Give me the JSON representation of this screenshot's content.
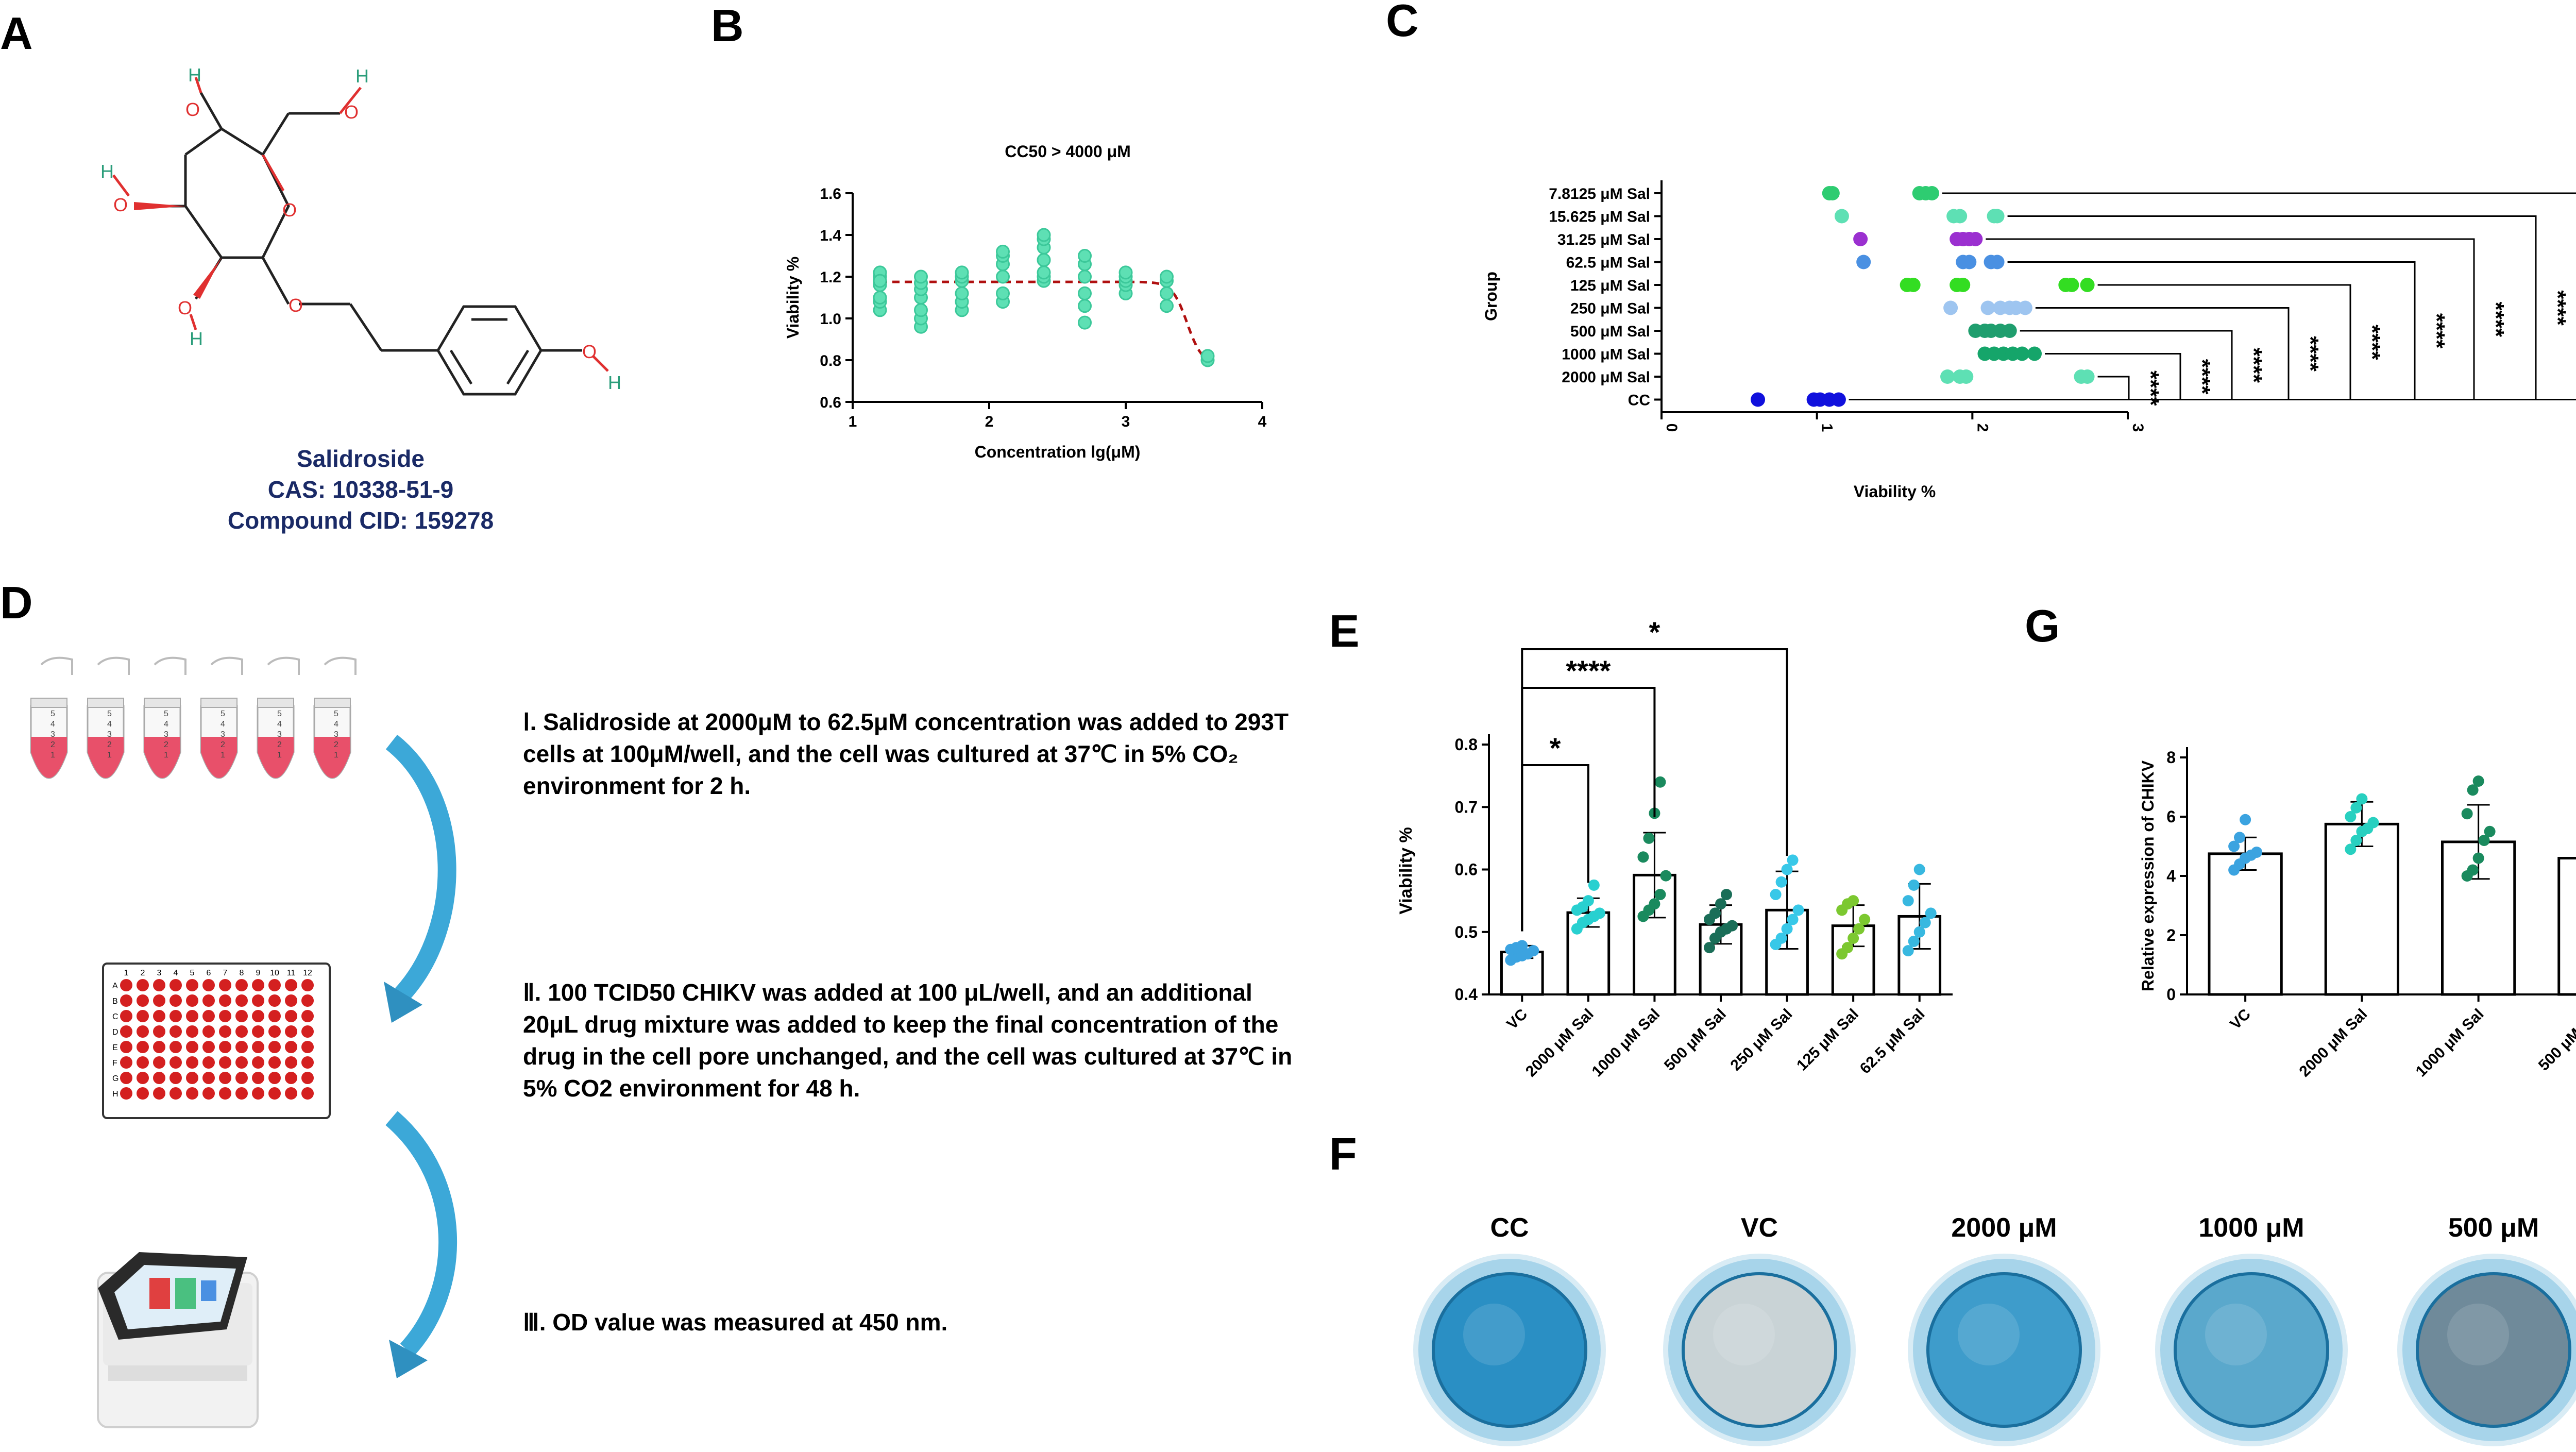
{
  "panel_labels": {
    "a": "A",
    "b": "B",
    "c": "C",
    "d": "D",
    "e": "E",
    "f": "F",
    "g": "G"
  },
  "compound": {
    "name": "Salidroside",
    "cas": "CAS: 10338-51-9",
    "cid": "Compound CID: 159278",
    "atom_labels": [
      "O",
      "O",
      "O",
      "O",
      "O",
      "O",
      "O",
      "H",
      "H",
      "H",
      "H",
      "H"
    ]
  },
  "protocol": {
    "step1": "Ⅰ. Salidroside at 2000μM to 62.5μM concentration was added to 293T cells at 100μM/well, and the cell was cultured at 37℃ in 5% CO₂ environment for 2 h.",
    "step2": "Ⅱ. 100 TCID50 CHIKV was added at 100 μL/well, and an additional 20μL drug mixture was added to keep the final concentration of the drug in the cell pore unchanged, and the cell was cultured at 37℃ in 5% CO2 environment for 48 h.",
    "step3": "Ⅲ. OD value was measured at 450 nm.",
    "tube_marks": [
      "5",
      "4",
      "3",
      "2",
      "1"
    ],
    "plate_cols": [
      "1",
      "2",
      "3",
      "4",
      "5",
      "6",
      "7",
      "8",
      "9",
      "10",
      "11",
      "12"
    ],
    "plate_rows": [
      "A",
      "B",
      "C",
      "D",
      "E",
      "F",
      "G",
      "H"
    ]
  },
  "stain_images": {
    "labels": [
      "CC",
      "VC",
      "2000 μM",
      "1000 μM",
      "500 μM"
    ]
  },
  "colors": {
    "teal": "#5ee0b4",
    "red_dash": "#b01010",
    "bar_outline": "#000000",
    "arrow": "#3ca8d8",
    "stain": "#2a8fc4",
    "text_blue": "#1a2a66"
  },
  "chart_data": [
    {
      "id": "B",
      "type": "scatter",
      "title": "CC50 > 4000 μM",
      "xlabel": "Concentration lg(μM)",
      "ylabel": "Viability %",
      "xlim": [
        1,
        4
      ],
      "ylim": [
        0.6,
        1.6
      ],
      "xticks": [
        "1",
        "2",
        "3",
        "4"
      ],
      "yticks": [
        "0.6",
        "0.8",
        "1.0",
        "1.2",
        "1.4",
        "1.6"
      ],
      "x": [
        1.2,
        1.5,
        1.8,
        2.1,
        2.4,
        2.7,
        3.0,
        3.3,
        3.6
      ],
      "replicates": [
        [
          1.04,
          1.08,
          1.16,
          1.2,
          1.22,
          1.18,
          1.1
        ],
        [
          0.96,
          1.0,
          1.04,
          1.1,
          1.14,
          1.17,
          1.2
        ],
        [
          1.04,
          1.08,
          1.12,
          1.18,
          1.2,
          1.22
        ],
        [
          1.08,
          1.12,
          1.2,
          1.26,
          1.3,
          1.32
        ],
        [
          1.18,
          1.2,
          1.22,
          1.28,
          1.34,
          1.38,
          1.4
        ],
        [
          0.98,
          1.06,
          1.12,
          1.2,
          1.26,
          1.3
        ],
        [
          1.12,
          1.16,
          1.18,
          1.2,
          1.22
        ],
        [
          1.06,
          1.12,
          1.18,
          1.2
        ],
        [
          0.8,
          0.82
        ]
      ],
      "fit": {
        "top": 1.175,
        "bottom": 0.78,
        "logIC50": 3.45,
        "hill": -8
      }
    },
    {
      "id": "C",
      "type": "scatter",
      "xlabel": "Viability %",
      "ylabel": "Group",
      "xlim": [
        0,
        3
      ],
      "xticks": [
        "0",
        "1",
        "2",
        "3"
      ],
      "groups": [
        "7.8125 μM Sal",
        "15.625 μM Sal",
        "31.25 μM Sal",
        "62.5 μM Sal",
        "125 μM Sal",
        "250 μM Sal",
        "500 μM Sal",
        "1000 μM Sal",
        "2000 μM Sal",
        "CC"
      ],
      "group_colors": [
        "#2ecc71",
        "#5ee0b4",
        "#9b30d0",
        "#4a90e2",
        "#33dd22",
        "#9ec5f0",
        "#1f9e6e",
        "#15a56a",
        "#5ee0b4",
        "#1010dd"
      ],
      "values": [
        [
          1.08,
          1.1,
          1.66,
          1.7,
          1.74
        ],
        [
          1.16,
          1.88,
          1.92,
          2.14,
          2.16
        ],
        [
          1.28,
          1.9,
          1.94,
          1.98,
          2.02
        ],
        [
          1.3,
          1.94,
          1.98,
          2.12,
          2.16
        ],
        [
          1.58,
          1.62,
          1.9,
          1.94,
          2.6,
          2.64,
          2.74
        ],
        [
          1.86,
          2.1,
          2.18,
          2.24,
          2.28,
          2.34
        ],
        [
          2.02,
          2.08,
          2.12,
          2.18,
          2.24
        ],
        [
          2.08,
          2.14,
          2.2,
          2.26,
          2.32,
          2.4
        ],
        [
          1.84,
          1.92,
          1.96,
          2.7,
          2.74
        ],
        [
          0.62,
          0.98,
          1.02,
          1.08,
          1.14
        ]
      ],
      "significance": [
        "*",
        "****",
        "****",
        "****",
        "****",
        "****",
        "****",
        "****",
        "****"
      ]
    },
    {
      "id": "E",
      "type": "bar",
      "ylabel": "Viability %",
      "ylim": [
        0.4,
        0.8
      ],
      "yticks": [
        "0.4",
        "0.5",
        "0.6",
        "0.7",
        "0.8"
      ],
      "categories": [
        "VC",
        "2000 μM Sal",
        "1000 μM Sal",
        "500 μM Sal",
        "250 μM Sal",
        "125 μM Sal",
        "62.5 μM Sal"
      ],
      "values": [
        0.468,
        0.531,
        0.591,
        0.512,
        0.535,
        0.51,
        0.525
      ],
      "errors": [
        0.01,
        0.023,
        0.068,
        0.031,
        0.062,
        0.033,
        0.052
      ],
      "point_colors": [
        "#3ba3e0",
        "#28d0d0",
        "#1a8a5e",
        "#1a6e58",
        "#38c8e8",
        "#7cc830",
        "#38b8e0"
      ],
      "points": [
        [
          0.455,
          0.46,
          0.462,
          0.465,
          0.47,
          0.472,
          0.475,
          0.478
        ],
        [
          0.505,
          0.515,
          0.52,
          0.525,
          0.53,
          0.535,
          0.54,
          0.55,
          0.575
        ],
        [
          0.525,
          0.535,
          0.545,
          0.56,
          0.59,
          0.62,
          0.65,
          0.69,
          0.74
        ],
        [
          0.475,
          0.49,
          0.5,
          0.505,
          0.51,
          0.52,
          0.53,
          0.545,
          0.56
        ],
        [
          0.48,
          0.49,
          0.505,
          0.52,
          0.535,
          0.56,
          0.58,
          0.6,
          0.615
        ],
        [
          0.465,
          0.475,
          0.49,
          0.505,
          0.52,
          0.535,
          0.545,
          0.55
        ],
        [
          0.47,
          0.485,
          0.5,
          0.515,
          0.53,
          0.55,
          0.575,
          0.6
        ]
      ],
      "brackets": [
        {
          "from": 0,
          "to": 1,
          "label": "*"
        },
        {
          "from": 0,
          "to": 2,
          "label": "****"
        },
        {
          "from": 0,
          "to": 4,
          "label": "*"
        }
      ]
    },
    {
      "id": "G",
      "type": "bar",
      "ylabel": "Relative expression of CHIKV",
      "ylim": [
        0,
        8
      ],
      "yticks": [
        "0",
        "2",
        "4",
        "6",
        "8"
      ],
      "categories": [
        "VC",
        "2000 μM Sal",
        "1000 μM Sal",
        "500 μM Sal"
      ],
      "values": [
        4.75,
        5.75,
        5.15,
        4.6
      ],
      "errors": [
        0.55,
        0.75,
        1.25,
        0.75
      ],
      "point_colors": [
        "#3ba3e0",
        "#28d0c0",
        "#1a8a5e",
        "#1a6e58"
      ],
      "points": [
        [
          4.2,
          4.4,
          4.6,
          4.7,
          4.8,
          5.0,
          5.3,
          5.9
        ],
        [
          4.9,
          5.2,
          5.5,
          5.6,
          5.8,
          6.0,
          6.3,
          6.6
        ],
        [
          4.0,
          4.2,
          4.6,
          5.2,
          5.5,
          6.1,
          6.9,
          7.2
        ],
        [
          3.7,
          4.0,
          4.4,
          4.7,
          5.0,
          5.1,
          5.3,
          5.5
        ]
      ]
    }
  ]
}
